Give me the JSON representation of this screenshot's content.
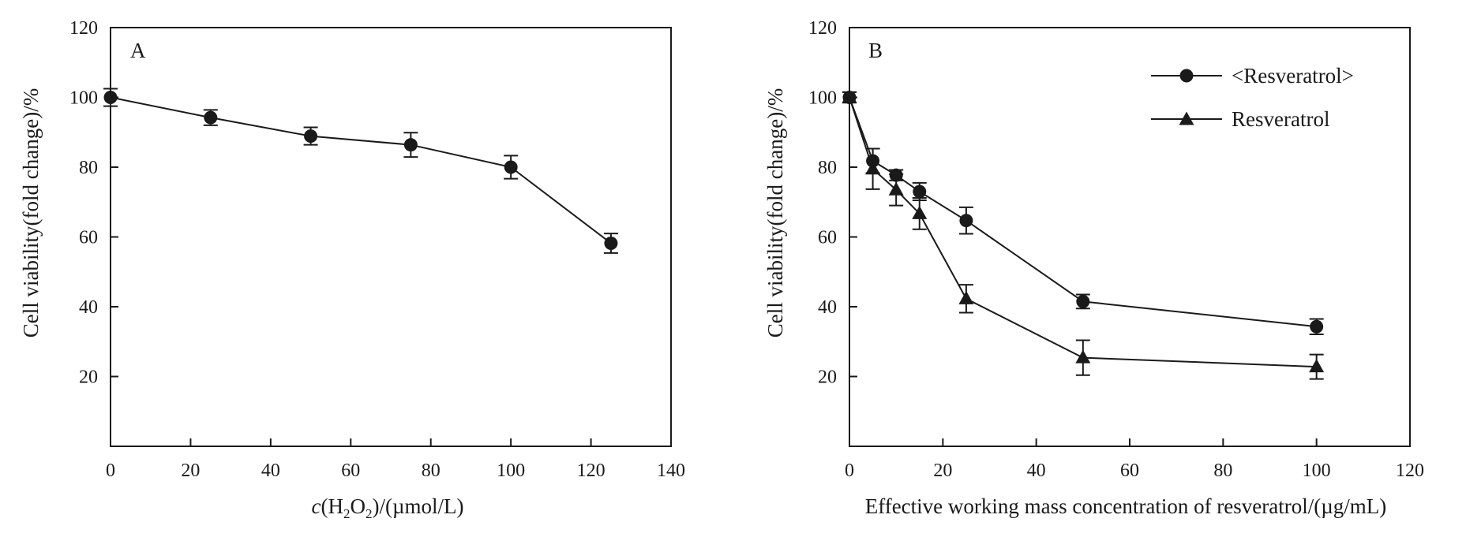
{
  "chart_data": [
    {
      "type": "line",
      "panel_label": "A",
      "xlabel": {
        "italic": "c",
        "pre": "(H",
        "sub1": "2",
        "mid": "O",
        "sub2": "2",
        "post": ")/(µmol/L)"
      },
      "ylabel": "Cell viability(fold change)/%",
      "xlim": [
        0,
        140
      ],
      "ylim": [
        0,
        120
      ],
      "xticks": [
        0,
        20,
        40,
        60,
        80,
        100,
        120,
        140
      ],
      "yticks": [
        20,
        40,
        60,
        80,
        100,
        120
      ],
      "grid": false,
      "series": [
        {
          "marker": "circle",
          "x": [
            0,
            25,
            50,
            75,
            100,
            125
          ],
          "y": [
            100,
            94.2,
            88.9,
            86.4,
            80,
            58.2
          ],
          "err": [
            2.5,
            2.2,
            2.5,
            3.5,
            3.3,
            2.8
          ]
        }
      ]
    },
    {
      "type": "line",
      "panel_label": "B",
      "xlabel": "Effective working mass concentration of resveratrol/(µg/mL)",
      "ylabel": "Cell viability(fold change)/%",
      "xlim": [
        0,
        120
      ],
      "ylim": [
        0,
        120
      ],
      "xticks": [
        0,
        20,
        40,
        60,
        80,
        100,
        120
      ],
      "yticks": [
        20,
        40,
        60,
        80,
        100,
        120
      ],
      "grid": false,
      "legend_position": "top-right",
      "series": [
        {
          "name": "<Resveratrol>",
          "marker": "circle",
          "x": [
            0,
            5,
            10,
            15,
            25,
            50,
            100
          ],
          "y": [
            100,
            81.8,
            77.7,
            73,
            64.7,
            41.5,
            34.3
          ],
          "err": [
            1.5,
            3.5,
            1.5,
            2.5,
            3.8,
            2.0,
            2.2
          ]
        },
        {
          "name": "Resveratrol",
          "marker": "triangle",
          "x": [
            0,
            5,
            10,
            15,
            25,
            50,
            100
          ],
          "y": [
            100,
            79.5,
            73.5,
            66.7,
            42.3,
            25.4,
            22.8
          ],
          "err": [
            1.5,
            5.8,
            4.5,
            4.5,
            4.0,
            5.0,
            3.5
          ]
        }
      ]
    }
  ]
}
